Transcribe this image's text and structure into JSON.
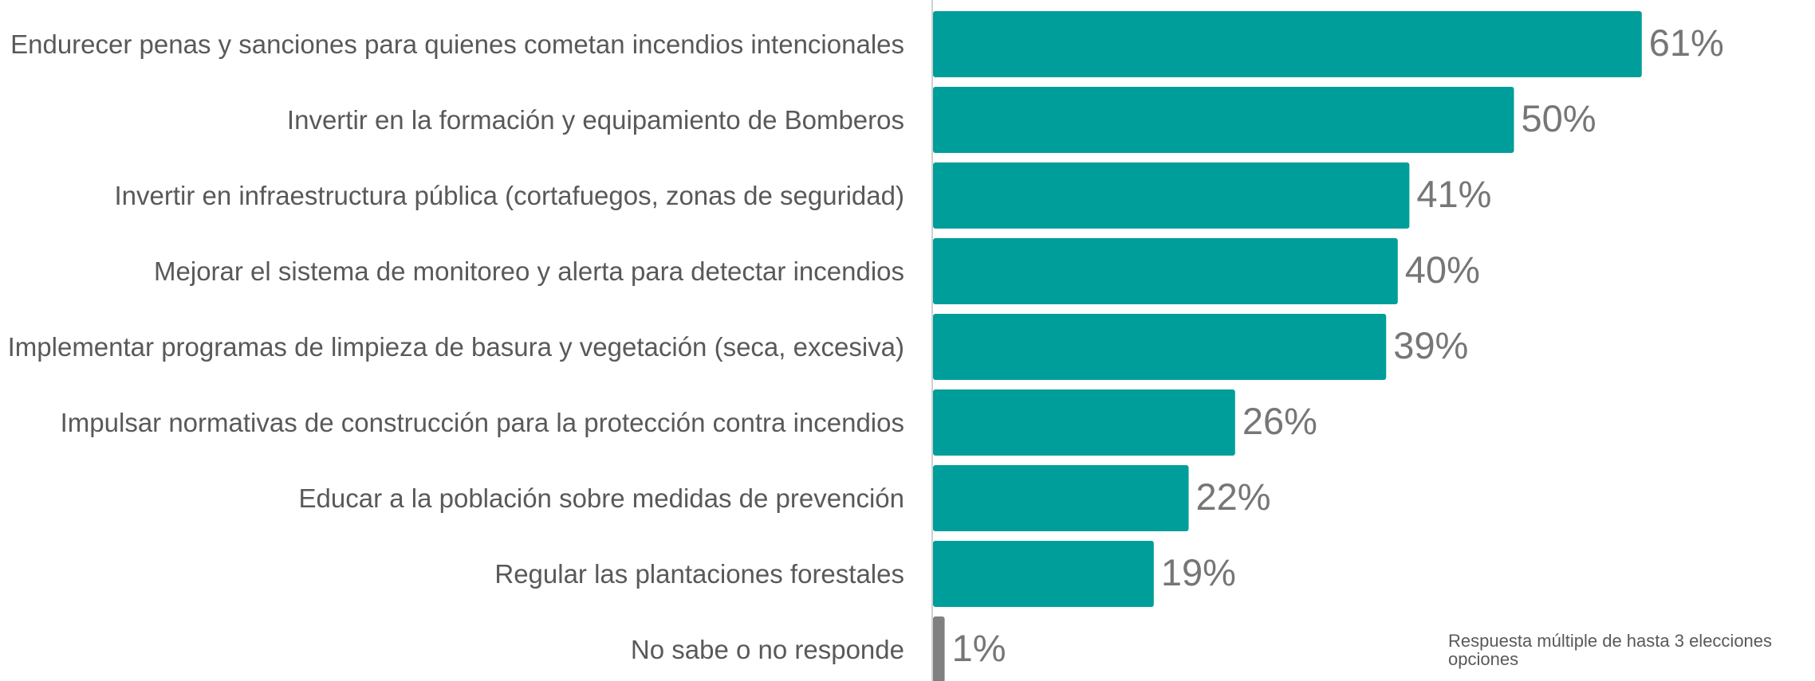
{
  "chart_data": {
    "type": "bar",
    "orientation": "horizontal",
    "categories": [
      "Endurecer penas y sanciones para quienes cometan incendios intencionales",
      "Invertir en la formación y equipamiento de Bomberos",
      "Invertir en infraestructura pública (cortafuegos, zonas de seguridad)",
      "Mejorar el sistema de monitoreo y alerta para detectar incendios",
      "Implementar programas de limpieza de basura y vegetación (seca, excesiva)",
      "Impulsar normativas de construcción para la protección contra incendios",
      "Educar a la población sobre medidas de prevención",
      "Regular las plantaciones forestales",
      "No sabe o no responde"
    ],
    "values": [
      61,
      50,
      41,
      40,
      39,
      26,
      22,
      19,
      1
    ],
    "value_labels": [
      "61%",
      "50%",
      "41%",
      "40%",
      "39%",
      "26%",
      "22%",
      "19%",
      "1%"
    ],
    "colors": [
      "#009e9a",
      "#009e9a",
      "#009e9a",
      "#009e9a",
      "#009e9a",
      "#009e9a",
      "#009e9a",
      "#009e9a",
      "#808080"
    ],
    "note": "Respuesta múltiple de hasta 3 elecciones opciones"
  }
}
